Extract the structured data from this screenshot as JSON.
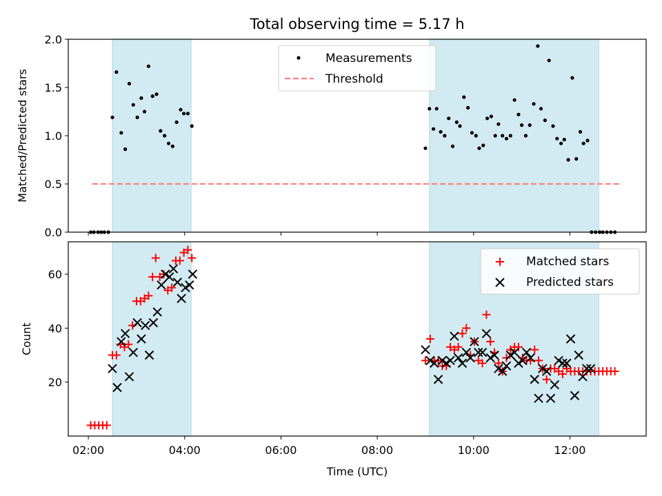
{
  "title": "Total observing time = 5.17 h",
  "colors": {
    "shade": "#add8e6",
    "threshold": "#ff7f7f",
    "matched": "#ff0000",
    "predicted": "#000000",
    "measure": "#000000"
  },
  "chart_data": [
    {
      "type": "scatter",
      "panel": "top",
      "ylabel": "Matched/Predicted stars",
      "xlabel": "",
      "ylim": [
        0,
        2.0
      ],
      "yticks": [
        0.0,
        0.5,
        1.0,
        1.5,
        2.0
      ],
      "ytick_labels": [
        "0.0",
        "0.5",
        "1.0",
        "1.5",
        "2.0"
      ],
      "xlim": [
        "01:35",
        "13:35"
      ],
      "shaded_intervals": [
        [
          "02:30",
          "04:08"
        ],
        [
          "09:05",
          "12:36"
        ]
      ],
      "legend": {
        "placement": "top-center",
        "entries": [
          "Measurements",
          "Threshold"
        ]
      },
      "threshold": {
        "name": "Threshold",
        "value": 0.5,
        "x": [
          "02:05",
          "13:05"
        ],
        "style": "dashed"
      },
      "series": [
        {
          "name": "Measurements",
          "marker": "dot",
          "points": [
            [
              "02:03",
              0
            ],
            [
              "02:07",
              0
            ],
            [
              "02:12",
              0
            ],
            [
              "02:16",
              0
            ],
            [
              "02:20",
              0
            ],
            [
              "02:25",
              0
            ],
            [
              "02:30",
              1.19
            ],
            [
              "02:35",
              1.66
            ],
            [
              "02:41",
              1.03
            ],
            [
              "02:46",
              0.86
            ],
            [
              "02:51",
              1.54
            ],
            [
              "02:56",
              1.32
            ],
            [
              "03:01",
              1.19
            ],
            [
              "03:06",
              1.39
            ],
            [
              "03:10",
              1.25
            ],
            [
              "03:15",
              1.72
            ],
            [
              "03:20",
              1.41
            ],
            [
              "03:25",
              1.43
            ],
            [
              "03:30",
              1.05
            ],
            [
              "03:35",
              1.0
            ],
            [
              "03:40",
              0.92
            ],
            [
              "03:45",
              0.89
            ],
            [
              "03:50",
              1.14
            ],
            [
              "03:55",
              1.27
            ],
            [
              "03:59",
              1.23
            ],
            [
              "04:04",
              1.23
            ],
            [
              "04:09",
              1.1
            ],
            [
              "09:00",
              0.87
            ],
            [
              "09:05",
              1.28
            ],
            [
              "09:10",
              1.07
            ],
            [
              "09:14",
              1.28
            ],
            [
              "09:19",
              1.04
            ],
            [
              "09:24",
              1.0
            ],
            [
              "09:29",
              1.18
            ],
            [
              "09:34",
              0.89
            ],
            [
              "09:39",
              1.14
            ],
            [
              "09:43",
              1.1
            ],
            [
              "09:48",
              1.4
            ],
            [
              "09:53",
              1.29
            ],
            [
              "09:58",
              1.03
            ],
            [
              "10:03",
              1.0
            ],
            [
              "10:07",
              0.87
            ],
            [
              "10:12",
              0.9
            ],
            [
              "10:17",
              1.18
            ],
            [
              "10:22",
              1.2
            ],
            [
              "10:27",
              1.0
            ],
            [
              "10:31",
              1.12
            ],
            [
              "10:36",
              1.0
            ],
            [
              "10:41",
              0.97
            ],
            [
              "10:46",
              1.0
            ],
            [
              "10:51",
              1.37
            ],
            [
              "10:56",
              1.22
            ],
            [
              "11:00",
              1.11
            ],
            [
              "11:05",
              1.0
            ],
            [
              "11:10",
              1.11
            ],
            [
              "11:15",
              1.33
            ],
            [
              "11:20",
              1.93
            ],
            [
              "11:24",
              1.28
            ],
            [
              "11:29",
              1.16
            ],
            [
              "11:34",
              1.78
            ],
            [
              "11:39",
              1.1
            ],
            [
              "11:44",
              0.97
            ],
            [
              "11:49",
              0.92
            ],
            [
              "11:53",
              0.96
            ],
            [
              "11:58",
              0.75
            ],
            [
              "12:03",
              1.6
            ],
            [
              "12:08",
              0.76
            ],
            [
              "12:13",
              1.04
            ],
            [
              "12:17",
              0.92
            ],
            [
              "12:22",
              0.95
            ],
            [
              "12:27",
              0
            ],
            [
              "12:32",
              0
            ],
            [
              "12:37",
              0
            ],
            [
              "12:41",
              0
            ],
            [
              "12:46",
              0
            ],
            [
              "12:51",
              0
            ],
            [
              "12:56",
              0
            ]
          ]
        }
      ]
    },
    {
      "type": "scatter",
      "panel": "bottom",
      "ylabel": "Count",
      "xlabel": "Time (UTC)",
      "ylim": [
        0,
        72
      ],
      "yticks": [
        20,
        40,
        60
      ],
      "ytick_labels": [
        "20",
        "40",
        "60"
      ],
      "xlim": [
        "01:35",
        "13:35"
      ],
      "xticks": [
        "02:00",
        "04:00",
        "06:00",
        "08:00",
        "10:00",
        "12:00"
      ],
      "xtick_labels": [
        "02:00",
        "04:00",
        "06:00",
        "08:00",
        "10:00",
        "12:00"
      ],
      "shaded_intervals": [
        [
          "02:30",
          "04:08"
        ],
        [
          "09:05",
          "12:36"
        ]
      ],
      "legend": {
        "placement": "top-right",
        "entries": [
          "Matched stars",
          "Predicted stars"
        ]
      },
      "series": [
        {
          "name": "Matched stars",
          "marker": "plus",
          "points": [
            [
              "02:03",
              4
            ],
            [
              "02:08",
              4
            ],
            [
              "02:13",
              4
            ],
            [
              "02:18",
              4
            ],
            [
              "02:23",
              4
            ],
            [
              "02:30",
              30
            ],
            [
              "02:35",
              30
            ],
            [
              "02:40",
              34
            ],
            [
              "02:45",
              33
            ],
            [
              "02:50",
              34
            ],
            [
              "02:55",
              41
            ],
            [
              "03:00",
              50
            ],
            [
              "03:05",
              50
            ],
            [
              "03:10",
              51
            ],
            [
              "03:15",
              52
            ],
            [
              "03:20",
              59
            ],
            [
              "03:24",
              66
            ],
            [
              "03:29",
              59
            ],
            [
              "03:34",
              60
            ],
            [
              "03:39",
              54
            ],
            [
              "03:44",
              55
            ],
            [
              "03:49",
              65
            ],
            [
              "03:54",
              65
            ],
            [
              "03:59",
              68
            ],
            [
              "04:04",
              69
            ],
            [
              "04:09",
              66
            ],
            [
              "09:00",
              28
            ],
            [
              "09:06",
              36
            ],
            [
              "09:11",
              28
            ],
            [
              "09:16",
              28
            ],
            [
              "09:21",
              26
            ],
            [
              "09:26",
              26
            ],
            [
              "09:31",
              33
            ],
            [
              "09:36",
              32
            ],
            [
              "09:41",
              33
            ],
            [
              "09:46",
              38
            ],
            [
              "09:51",
              40
            ],
            [
              "09:56",
              30
            ],
            [
              "10:01",
              35
            ],
            [
              "10:06",
              28
            ],
            [
              "10:11",
              27
            ],
            [
              "10:16",
              45
            ],
            [
              "10:21",
              35
            ],
            [
              "10:26",
              31
            ],
            [
              "10:31",
              27
            ],
            [
              "10:36",
              24
            ],
            [
              "10:41",
              29
            ],
            [
              "10:46",
              32
            ],
            [
              "10:51",
              33
            ],
            [
              "10:56",
              33
            ],
            [
              "11:01",
              29
            ],
            [
              "11:06",
              28
            ],
            [
              "11:11",
              28
            ],
            [
              "11:16",
              32
            ],
            [
              "11:21",
              28
            ],
            [
              "11:26",
              25
            ],
            [
              "11:31",
              21
            ],
            [
              "11:36",
              25
            ],
            [
              "11:41",
              25
            ],
            [
              "11:46",
              24
            ],
            [
              "11:51",
              23
            ],
            [
              "11:56",
              25
            ],
            [
              "12:01",
              24
            ],
            [
              "12:06",
              24
            ],
            [
              "12:11",
              24
            ],
            [
              "12:16",
              24
            ],
            [
              "12:21",
              24
            ],
            [
              "12:26",
              24
            ],
            [
              "12:31",
              24
            ],
            [
              "12:36",
              24
            ],
            [
              "12:41",
              24
            ],
            [
              "12:46",
              24
            ],
            [
              "12:51",
              24
            ],
            [
              "12:56",
              24
            ]
          ]
        },
        {
          "name": "Predicted stars",
          "marker": "x",
          "points": [
            [
              "02:30",
              25
            ],
            [
              "02:36",
              18
            ],
            [
              "02:41",
              35
            ],
            [
              "02:46",
              38
            ],
            [
              "02:51",
              22
            ],
            [
              "02:56",
              31
            ],
            [
              "03:01",
              42
            ],
            [
              "03:06",
              36
            ],
            [
              "03:11",
              41
            ],
            [
              "03:16",
              30
            ],
            [
              "03:21",
              42
            ],
            [
              "03:26",
              46
            ],
            [
              "03:31",
              56
            ],
            [
              "03:36",
              60
            ],
            [
              "03:41",
              59
            ],
            [
              "03:46",
              62
            ],
            [
              "03:51",
              57
            ],
            [
              "03:56",
              51
            ],
            [
              "04:01",
              55
            ],
            [
              "04:06",
              56
            ],
            [
              "04:10",
              60
            ],
            [
              "09:00",
              32
            ],
            [
              "09:06",
              28
            ],
            [
              "09:11",
              27
            ],
            [
              "09:16",
              21
            ],
            [
              "09:21",
              28
            ],
            [
              "09:26",
              27
            ],
            [
              "09:31",
              28
            ],
            [
              "09:36",
              37
            ],
            [
              "09:41",
              29
            ],
            [
              "09:46",
              27
            ],
            [
              "09:51",
              31
            ],
            [
              "09:56",
              29
            ],
            [
              "10:01",
              35
            ],
            [
              "10:06",
              31
            ],
            [
              "10:11",
              31
            ],
            [
              "10:16",
              38
            ],
            [
              "10:21",
              29
            ],
            [
              "10:26",
              30
            ],
            [
              "10:31",
              25
            ],
            [
              "10:36",
              24
            ],
            [
              "10:41",
              26
            ],
            [
              "10:46",
              30
            ],
            [
              "10:51",
              31
            ],
            [
              "10:56",
              27
            ],
            [
              "11:01",
              28
            ],
            [
              "11:06",
              31
            ],
            [
              "11:11",
              29
            ],
            [
              "11:16",
              21
            ],
            [
              "11:21",
              14
            ],
            [
              "11:26",
              25
            ],
            [
              "11:31",
              24
            ],
            [
              "11:36",
              14
            ],
            [
              "11:41",
              19
            ],
            [
              "11:46",
              28
            ],
            [
              "11:51",
              27
            ],
            [
              "11:56",
              27
            ],
            [
              "12:01",
              36
            ],
            [
              "12:06",
              15
            ],
            [
              "12:11",
              30
            ],
            [
              "12:16",
              22
            ],
            [
              "12:21",
              25
            ],
            [
              "12:26",
              25
            ]
          ]
        }
      ]
    }
  ]
}
